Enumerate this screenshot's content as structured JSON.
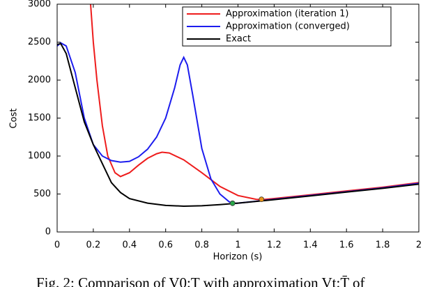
{
  "chart_data": {
    "type": "line",
    "xlabel": "Horizon (s)",
    "ylabel": "Cost",
    "caption": "Fig. 2: Comparison of V0:T with approximation Vt:T̄ of",
    "xlim": [
      0,
      2
    ],
    "ylim": [
      0,
      3000
    ],
    "xticks": [
      0,
      0.2,
      0.4,
      0.6,
      0.8,
      1,
      1.2,
      1.4,
      1.6,
      1.8,
      2
    ],
    "yticks": [
      0,
      500,
      1000,
      1500,
      2000,
      2500,
      3000
    ],
    "legend": "upper right",
    "series": [
      {
        "name": "Approximation (iteration 1)",
        "color": "#ee1c1c",
        "x": [
          0.185,
          0.2,
          0.22,
          0.25,
          0.28,
          0.32,
          0.35,
          0.4,
          0.45,
          0.5,
          0.55,
          0.58,
          0.62,
          0.7,
          0.8,
          0.9,
          1.0,
          1.1,
          1.13,
          1.2,
          1.4,
          1.6,
          1.8,
          2.0
        ],
        "values": [
          3000,
          2500,
          2000,
          1400,
          1000,
          780,
          730,
          780,
          880,
          970,
          1030,
          1050,
          1040,
          950,
          780,
          600,
          480,
          430,
          425,
          440,
          490,
          540,
          590,
          650
        ]
      },
      {
        "name": "Approximation (converged)",
        "color": "#1c1cee",
        "x": [
          0,
          0.02,
          0.05,
          0.1,
          0.15,
          0.2,
          0.25,
          0.3,
          0.35,
          0.4,
          0.45,
          0.5,
          0.55,
          0.6,
          0.65,
          0.68,
          0.7,
          0.72,
          0.75,
          0.8,
          0.85,
          0.9,
          0.95,
          0.97,
          1.0,
          1.2,
          1.4,
          1.6,
          1.8,
          2.0
        ],
        "values": [
          2450,
          2490,
          2450,
          2100,
          1500,
          1150,
          1000,
          940,
          920,
          930,
          990,
          1090,
          1250,
          1500,
          1900,
          2200,
          2300,
          2200,
          1800,
          1100,
          700,
          500,
          400,
          375,
          380,
          430,
          480,
          530,
          580,
          640
        ]
      },
      {
        "name": "Exact",
        "color": "#000000",
        "x": [
          0,
          0.02,
          0.05,
          0.1,
          0.15,
          0.2,
          0.25,
          0.3,
          0.35,
          0.4,
          0.5,
          0.6,
          0.7,
          0.8,
          0.9,
          1.0,
          1.2,
          1.4,
          1.6,
          1.8,
          2.0
        ],
        "values": [
          2470,
          2480,
          2350,
          1900,
          1450,
          1150,
          900,
          650,
          520,
          440,
          380,
          350,
          340,
          345,
          360,
          380,
          425,
          475,
          525,
          575,
          630
        ]
      }
    ],
    "points": [
      {
        "x": 0.97,
        "y": 378,
        "color": "#2aa84a"
      },
      {
        "x": 1.13,
        "y": 430,
        "color": "#e8941a"
      }
    ]
  }
}
